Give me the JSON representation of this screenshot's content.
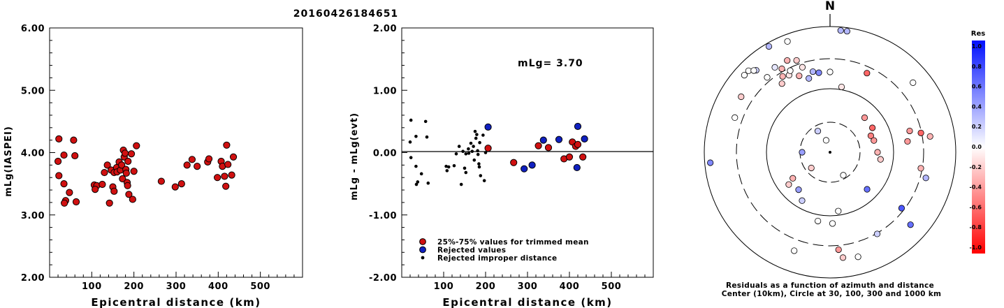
{
  "figure": {
    "title": "20160426184651",
    "north_label": "N"
  },
  "chart_data": [
    {
      "type": "scatter",
      "panel": "magnitude-vs-distance",
      "xlabel": "Epicentral distance (km)",
      "ylabel": "mLg(IASPEI)",
      "xlim": [
        0,
        600
      ],
      "ylim": [
        2.0,
        6.0
      ],
      "xticks": [
        "100",
        "200",
        "300",
        "400",
        "500"
      ],
      "yticks": [
        "2.00",
        "3.00",
        "4.00",
        "5.00",
        "6.00"
      ],
      "series": [
        {
          "marker_color": "#d01010",
          "points": [
            [
              22,
              4.22
            ],
            [
              20,
              3.86
            ],
            [
              22,
              3.63
            ],
            [
              34,
              3.96
            ],
            [
              34,
              3.5
            ],
            [
              38,
              3.23
            ],
            [
              35,
              3.19
            ],
            [
              47,
              3.36
            ],
            [
              57,
              4.2
            ],
            [
              60,
              3.95
            ],
            [
              63,
              3.21
            ],
            [
              106,
              3.48
            ],
            [
              112,
              3.47
            ],
            [
              108,
              3.41
            ],
            [
              125,
              3.49
            ],
            [
              130,
              3.68
            ],
            [
              137,
              3.8
            ],
            [
              146,
              3.72
            ],
            [
              142,
              3.19
            ],
            [
              150,
              3.45
            ],
            [
              153,
              3.38
            ],
            [
              153,
              3.68
            ],
            [
              159,
              3.76
            ],
            [
              160,
              3.69
            ],
            [
              165,
              3.85
            ],
            [
              168,
              3.72
            ],
            [
              171,
              3.8
            ],
            [
              173,
              3.58
            ],
            [
              175,
              4.04
            ],
            [
              177,
              3.93
            ],
            [
              179,
              3.99
            ],
            [
              181,
              3.73
            ],
            [
              182,
              3.67
            ],
            [
              184,
              3.52
            ],
            [
              185,
              3.47
            ],
            [
              186,
              3.86
            ],
            [
              188,
              3.33
            ],
            [
              194,
              3.98
            ],
            [
              197,
              3.25
            ],
            [
              200,
              3.7
            ],
            [
              206,
              4.11
            ],
            [
              265,
              3.54
            ],
            [
              298,
              3.45
            ],
            [
              313,
              3.5
            ],
            [
              326,
              3.8
            ],
            [
              338,
              3.89
            ],
            [
              350,
              3.78
            ],
            [
              375,
              3.85
            ],
            [
              378,
              3.9
            ],
            [
              398,
              3.6
            ],
            [
              407,
              3.86
            ],
            [
              410,
              3.78
            ],
            [
              415,
              3.62
            ],
            [
              418,
              3.46
            ],
            [
              420,
              4.12
            ],
            [
              423,
              3.81
            ],
            [
              432,
              3.64
            ],
            [
              436,
              3.93
            ]
          ]
        }
      ]
    },
    {
      "type": "scatter",
      "panel": "residual-vs-distance",
      "xlabel": "Epicentral distance (km)",
      "ylabel": "mLg - mLg(evt)",
      "xlim": [
        0,
        600
      ],
      "ylim": [
        -2.0,
        2.0
      ],
      "xticks": [
        "100",
        "200",
        "300",
        "400",
        "500"
      ],
      "yticks": [
        "-2.00",
        "-1.00",
        "0.00",
        "1.00",
        "2.00"
      ],
      "annotation": "mLg= 3.70",
      "legend": [
        {
          "label": "25%-75% values for trimmed mean",
          "color": "#d01010",
          "marker": "circle"
        },
        {
          "label": "Rejected values",
          "color": "#1020c0",
          "marker": "circle"
        },
        {
          "label": "Rejected improper distance",
          "color": "#000000",
          "marker": "dot"
        }
      ],
      "series": [
        {
          "legend_ref": 0,
          "marker_color": "#d01010",
          "points": [
            [
              206,
              0.07
            ],
            [
              267,
              -0.16
            ],
            [
              326,
              0.11
            ],
            [
              350,
              0.08
            ],
            [
              387,
              -0.1
            ],
            [
              400,
              -0.07
            ],
            [
              407,
              0.17
            ],
            [
              415,
              0.1
            ],
            [
              420,
              0.13
            ],
            [
              432,
              -0.07
            ]
          ]
        },
        {
          "legend_ref": 1,
          "marker_color": "#1020c0",
          "points": [
            [
              206,
              0.41
            ],
            [
              292,
              -0.26
            ],
            [
              311,
              -0.2
            ],
            [
              338,
              0.2
            ],
            [
              375,
              0.21
            ],
            [
              418,
              -0.24
            ],
            [
              420,
              0.42
            ],
            [
              436,
              0.22
            ]
          ]
        },
        {
          "legend_ref": 2,
          "marker_color": "#000000",
          "points": [
            [
              22,
              0.52
            ],
            [
              20,
              0.17
            ],
            [
              22,
              -0.08
            ],
            [
              34,
              0.26
            ],
            [
              34,
              -0.22
            ],
            [
              38,
              -0.47
            ],
            [
              35,
              -0.51
            ],
            [
              47,
              -0.34
            ],
            [
              57,
              0.5
            ],
            [
              60,
              0.25
            ],
            [
              63,
              -0.49
            ],
            [
              106,
              -0.22
            ],
            [
              112,
              -0.23
            ],
            [
              108,
              -0.29
            ],
            [
              125,
              -0.21
            ],
            [
              130,
              -0.02
            ],
            [
              137,
              0.1
            ],
            [
              146,
              0.02
            ],
            [
              142,
              -0.51
            ],
            [
              150,
              -0.25
            ],
            [
              153,
              -0.32
            ],
            [
              153,
              -0.02
            ],
            [
              159,
              0.06
            ],
            [
              160,
              -0.01
            ],
            [
              165,
              0.15
            ],
            [
              168,
              0.02
            ],
            [
              171,
              0.1
            ],
            [
              173,
              -0.12
            ],
            [
              175,
              0.34
            ],
            [
              177,
              0.23
            ],
            [
              179,
              0.29
            ],
            [
              181,
              0.03
            ],
            [
              182,
              -0.03
            ],
            [
              184,
              -0.18
            ],
            [
              185,
              -0.23
            ],
            [
              186,
              0.16
            ],
            [
              188,
              -0.37
            ],
            [
              194,
              0.28
            ],
            [
              197,
              -0.45
            ],
            [
              200,
              0.0
            ]
          ]
        }
      ]
    },
    {
      "type": "scatter",
      "panel": "azimuth-distance-residuals",
      "caption_lines": [
        "Residuals as a function of azimuth and distance",
        "Center (10km), Circle at 30, 100, 300 and 1000 km"
      ],
      "rings_km": [
        30,
        100,
        300,
        1000
      ],
      "colorbar": {
        "title": "Res",
        "ticks": [
          "1.0",
          "0.8",
          "0.6",
          "0.4",
          "0.2",
          "0.0",
          "-0.2",
          "-0.4",
          "-0.6",
          "-0.8",
          "-1.0"
        ],
        "max_color": "#0010ff",
        "zero_color": "#ffffff",
        "min_color": "#ff0000"
      },
      "points": [
        {
          "az": -30,
          "r": 35,
          "res": 0.2
        },
        {
          "az": -18,
          "r": 18,
          "res": 0.0
        },
        {
          "az": 150,
          "r": 38,
          "res": 0.0
        },
        {
          "az": -90,
          "r": 40,
          "res": 0.4
        },
        {
          "az": -130,
          "r": 35,
          "res": -0.2
        },
        {
          "az": 45,
          "r": 70,
          "res": -0.4
        },
        {
          "az": 60,
          "r": 70,
          "res": -0.6
        },
        {
          "az": 68,
          "r": 63,
          "res": -0.5
        },
        {
          "az": 75,
          "r": 65,
          "res": -0.4
        },
        {
          "az": 90,
          "r": 68,
          "res": -0.3
        },
        {
          "az": 98,
          "r": 73,
          "res": -0.2
        },
        {
          "az": 135,
          "r": 75,
          "res": 0.6
        },
        {
          "az": -140,
          "r": 70,
          "res": 0.4
        },
        {
          "az": -125,
          "r": 65,
          "res": -0.3
        },
        {
          "az": -128,
          "r": 75,
          "res": -0.2
        },
        {
          "az": -150,
          "r": 80,
          "res": 0.2
        },
        {
          "az": -170,
          "r": 100,
          "res": 0.0
        },
        {
          "az": 178,
          "r": 102,
          "res": 0.0
        },
        {
          "az": 172,
          "r": 85,
          "res": 0.0
        },
        {
          "az": 0,
          "r": 115,
          "res": 0.0
        },
        {
          "az": 10,
          "r": 95,
          "res": -0.1
        },
        {
          "az": 25,
          "r": 125,
          "res": -0.6
        },
        {
          "az": -35,
          "r": 120,
          "res": -0.2
        },
        {
          "az": -40,
          "r": 140,
          "res": 0.0
        },
        {
          "az": -32,
          "r": 128,
          "res": -0.3
        },
        {
          "az": -28,
          "r": 125,
          "res": -0.1
        },
        {
          "az": -30,
          "r": 138,
          "res": -0.3
        },
        {
          "az": -26,
          "r": 130,
          "res": 0.0
        },
        {
          "az": -22,
          "r": 118,
          "res": -0.3
        },
        {
          "az": -18,
          "r": 128,
          "res": -0.1
        },
        {
          "az": -16,
          "r": 110,
          "res": 0.3
        },
        {
          "az": -12,
          "r": 118,
          "res": 0.3
        },
        {
          "az": -8,
          "r": 115,
          "res": 0.5
        },
        {
          "az": -25,
          "r": 145,
          "res": -0.3
        },
        {
          "az": -20,
          "r": 140,
          "res": -0.2
        },
        {
          "az": -33,
          "r": 145,
          "res": 0.1
        },
        {
          "az": -42,
          "r": 158,
          "res": 0.2
        },
        {
          "az": -45,
          "r": 165,
          "res": 0.0
        },
        {
          "az": -48,
          "r": 165,
          "res": 0.0
        },
        {
          "az": -43,
          "r": 160,
          "res": 0.0
        },
        {
          "az": -58,
          "r": 150,
          "res": -0.2
        },
        {
          "az": -70,
          "r": 145,
          "res": 0.0
        },
        {
          "az": -30,
          "r": 175,
          "res": 0.3
        },
        {
          "az": -21,
          "r": 170,
          "res": 0.0
        },
        {
          "az": 5,
          "r": 175,
          "res": 0.3
        },
        {
          "az": 8,
          "r": 175,
          "res": 0.3
        },
        {
          "az": 50,
          "r": 155,
          "res": 0.0
        },
        {
          "az": 75,
          "r": 118,
          "res": -0.4
        },
        {
          "az": 82,
          "r": 112,
          "res": -0.4
        },
        {
          "az": 78,
          "r": 133,
          "res": -0.6
        },
        {
          "az": 81,
          "r": 145,
          "res": -0.3
        },
        {
          "az": 100,
          "r": 132,
          "res": -0.3
        },
        {
          "az": 105,
          "r": 142,
          "res": 0.3
        },
        {
          "az": 128,
          "r": 130,
          "res": 0.7
        },
        {
          "az": 132,
          "r": 155,
          "res": 0.6
        },
        {
          "az": 150,
          "r": 135,
          "res": 0.2
        },
        {
          "az": 173,
          "r": 152,
          "res": -0.2
        },
        {
          "az": 175,
          "r": 140,
          "res": -0.4
        },
        {
          "az": 165,
          "r": 155,
          "res": 0.0
        },
        {
          "az": -160,
          "r": 150,
          "res": 0.0
        },
        {
          "az": -95,
          "r": 172,
          "res": 0.5
        }
      ]
    }
  ]
}
